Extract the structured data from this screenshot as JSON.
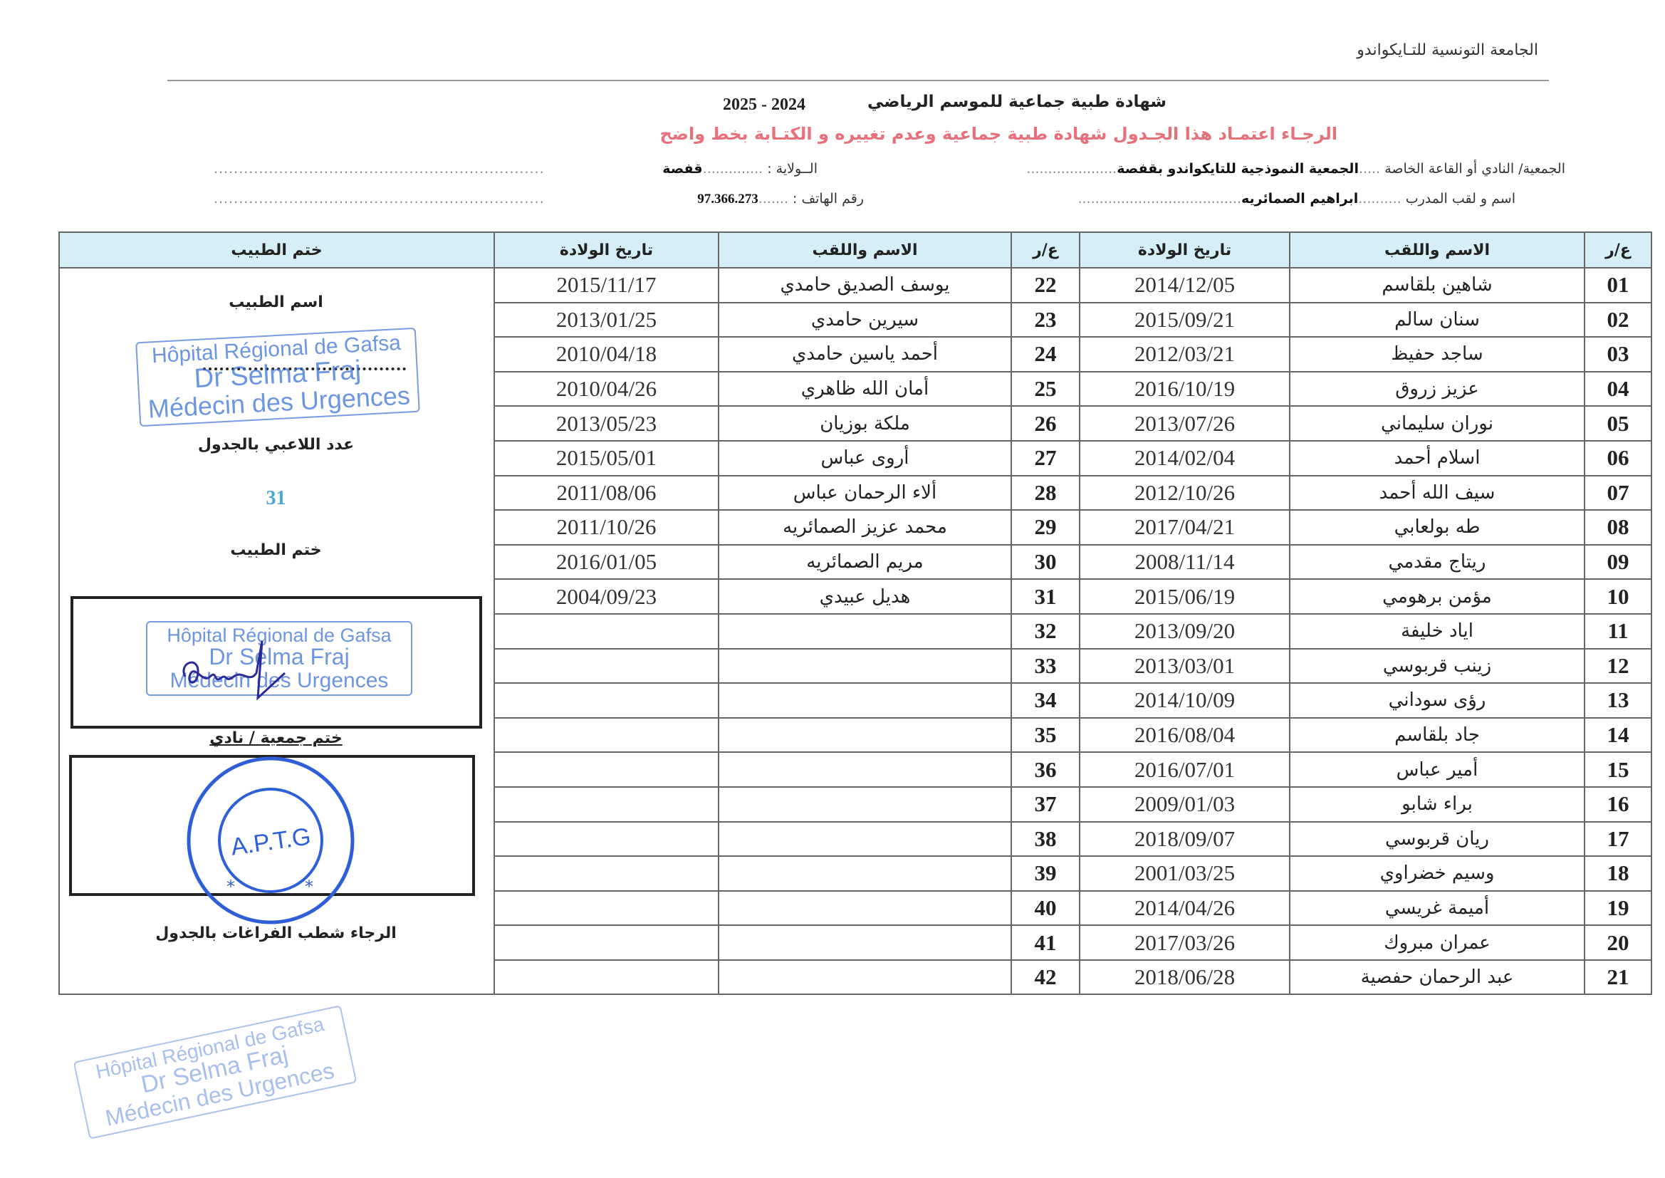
{
  "header": {
    "organization": "الجامعة التونسية للتـايكواندو",
    "title": "شهادة طبية جماعية للموسم الرياضي",
    "season": "2025  -  2024",
    "notice": "الرجـاء اعتمـاد هذا الجـدول  شهادة طبية جماعية وعدم تغييره و الكتـابة بخط واضح",
    "club_label": "الجمعية/ النادي أو القاعة الخاصة",
    "club_value": "الجمعية النموذجية للتايكواندو بقفصة",
    "state_label": "الــولاية :",
    "state_value": "قفصة",
    "coach_label": "اسم و لقب المدرب",
    "coach_value": "ابراهيم الصمائريه",
    "phone_label": "رقم الهاتف  :",
    "phone_value": "97.366.273"
  },
  "table": {
    "headers": {
      "num": "ع/ر",
      "name": "الاسم واللقب",
      "birth": "تاريخ الولادة",
      "stamp": "ختم الطبيب"
    },
    "left_rows": [
      [
        "01",
        "شاهين بلقاسم",
        "2014/12/05"
      ],
      [
        "02",
        "سنان سالم",
        "2015/09/21"
      ],
      [
        "03",
        "ساجد حفيظ",
        "2012/03/21"
      ],
      [
        "04",
        "عزيز زروق",
        "2016/10/19"
      ],
      [
        "05",
        "نوران سليماني",
        "2013/07/26"
      ],
      [
        "06",
        "اسلام أحمد",
        "2014/02/04"
      ],
      [
        "07",
        "سيف الله أحمد",
        "2012/10/26"
      ],
      [
        "08",
        "طه بولعابي",
        "2017/04/21"
      ],
      [
        "09",
        "ريتاج مقدمي",
        "2008/11/14"
      ],
      [
        "10",
        "مؤمن برهومي",
        "2015/06/19"
      ],
      [
        "11",
        "اياد خليفة",
        "2013/09/20"
      ],
      [
        "12",
        "زينب قربوسي",
        "2013/03/01"
      ],
      [
        "13",
        "رؤى    سوداني",
        "2014/10/09"
      ],
      [
        "14",
        "جاد بلقاسم",
        "2016/08/04"
      ],
      [
        "15",
        "أمير عباس",
        "2016/07/01"
      ],
      [
        "16",
        "براء شابو",
        "2009/01/03"
      ],
      [
        "17",
        "ريان قربوسي",
        "2018/09/07"
      ],
      [
        "18",
        "وسيم خضراوي",
        "2001/03/25"
      ],
      [
        "19",
        "أميمة غريسي",
        "2014/04/26"
      ],
      [
        "20",
        "عمران مبروك",
        "2017/03/26"
      ],
      [
        "21",
        "عبد الرحمان حفصية",
        "2018/06/28"
      ]
    ],
    "right_rows": [
      [
        "22",
        "يوسف الصديق حامدي",
        "2015/11/17"
      ],
      [
        "23",
        "سيرين حامدي",
        "2013/01/25"
      ],
      [
        "24",
        "أحمد ياسين حامدي",
        "2010/04/18"
      ],
      [
        "25",
        "أمان الله ظاهري",
        "2010/04/26"
      ],
      [
        "26",
        "ملكة بوزيان",
        "2013/05/23"
      ],
      [
        "27",
        "أروى عباس",
        "2015/05/01"
      ],
      [
        "28",
        "ألاء الرحمان عباس",
        "2011/08/06"
      ],
      [
        "29",
        "محمد عزيز الصمائريه",
        "2011/10/26"
      ],
      [
        "30",
        "مريم الصمائريه",
        "2016/01/05"
      ],
      [
        "31",
        "هديل عبيدي",
        "2004/09/23"
      ],
      [
        "32",
        "",
        ""
      ],
      [
        "33",
        "",
        ""
      ],
      [
        "34",
        "",
        ""
      ],
      [
        "35",
        "",
        ""
      ],
      [
        "36",
        "",
        ""
      ],
      [
        "37",
        "",
        ""
      ],
      [
        "38",
        "",
        ""
      ],
      [
        "39",
        "",
        ""
      ],
      [
        "40",
        "",
        ""
      ],
      [
        "41",
        "",
        ""
      ],
      [
        "42",
        "",
        ""
      ]
    ]
  },
  "stamp_column": {
    "doctor_name_label": "اسم الطبيب",
    "players_count_label": "عدد اللاعبي بالجدول",
    "players_count": "31",
    "doctor_stamp_label": "ختم الطبيب",
    "club_stamp_label": "ختم جمعية / نادي",
    "footer_note": "الرجاء شطب الفراغات بالجدول"
  },
  "stamps": {
    "hospital_line1": "Hôpital Régional de Gafsa",
    "hospital_line2": "Dr Selma Fraj",
    "hospital_line3": "Médecin des Urgences",
    "club_seal": "A.P.T.G"
  },
  "colors": {
    "header_fill": "#d6eef6",
    "notice": "#e8707a",
    "count": "#4aa8d8",
    "stamp_ink": "#3c73d6"
  }
}
